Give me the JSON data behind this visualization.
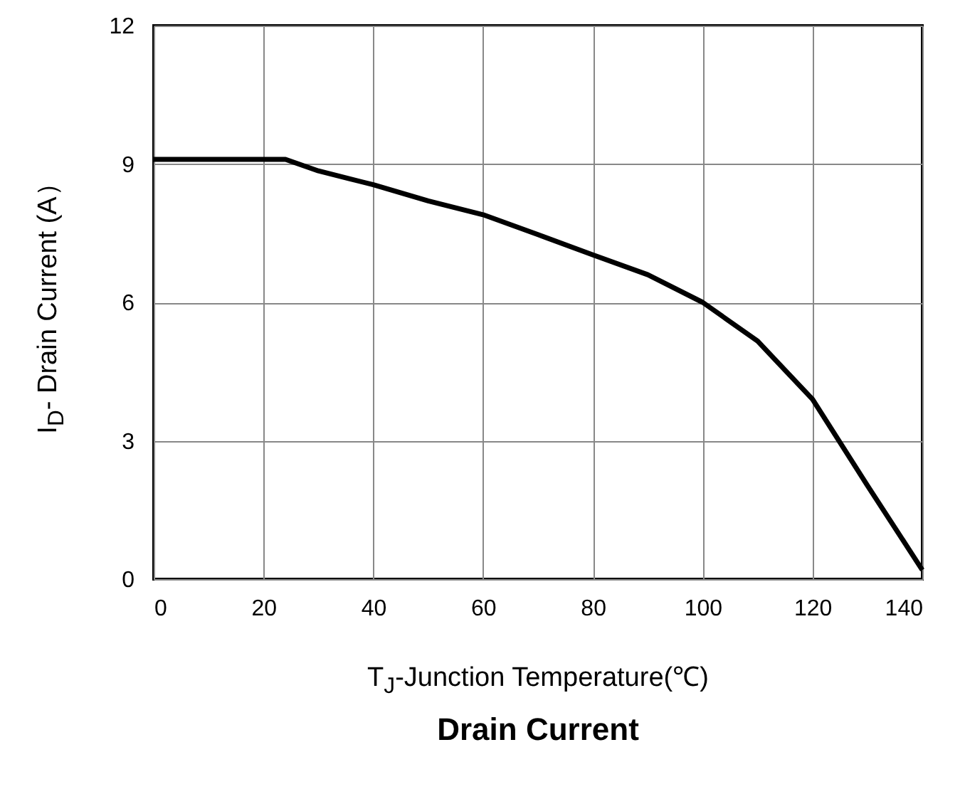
{
  "chart_data": {
    "type": "line",
    "title": "Drain Current",
    "xlabel": "T$_{J}$-Junction Temperature(℃)",
    "ylabel": "I$_{D}$- Drain Current (A）",
    "x": [
      0,
      10,
      20,
      24,
      30,
      40,
      50,
      60,
      70,
      80,
      90,
      100,
      110,
      120,
      130,
      140
    ],
    "series": [
      {
        "color": "#000000",
        "values": [
          9.1,
          9.1,
          9.1,
          9.1,
          8.85,
          8.55,
          8.2,
          7.9,
          7.47,
          7.03,
          6.6,
          6.0,
          5.16,
          3.9,
          2.03,
          0.2
        ]
      }
    ],
    "xlim": [
      0,
      140
    ],
    "xticks": [
      0,
      20,
      40,
      60,
      80,
      100,
      120,
      140
    ],
    "ylim": [
      0,
      12
    ],
    "yticks": [
      0,
      3,
      6,
      9,
      12
    ],
    "grid": true,
    "marker": "none",
    "line_style": "solid"
  }
}
